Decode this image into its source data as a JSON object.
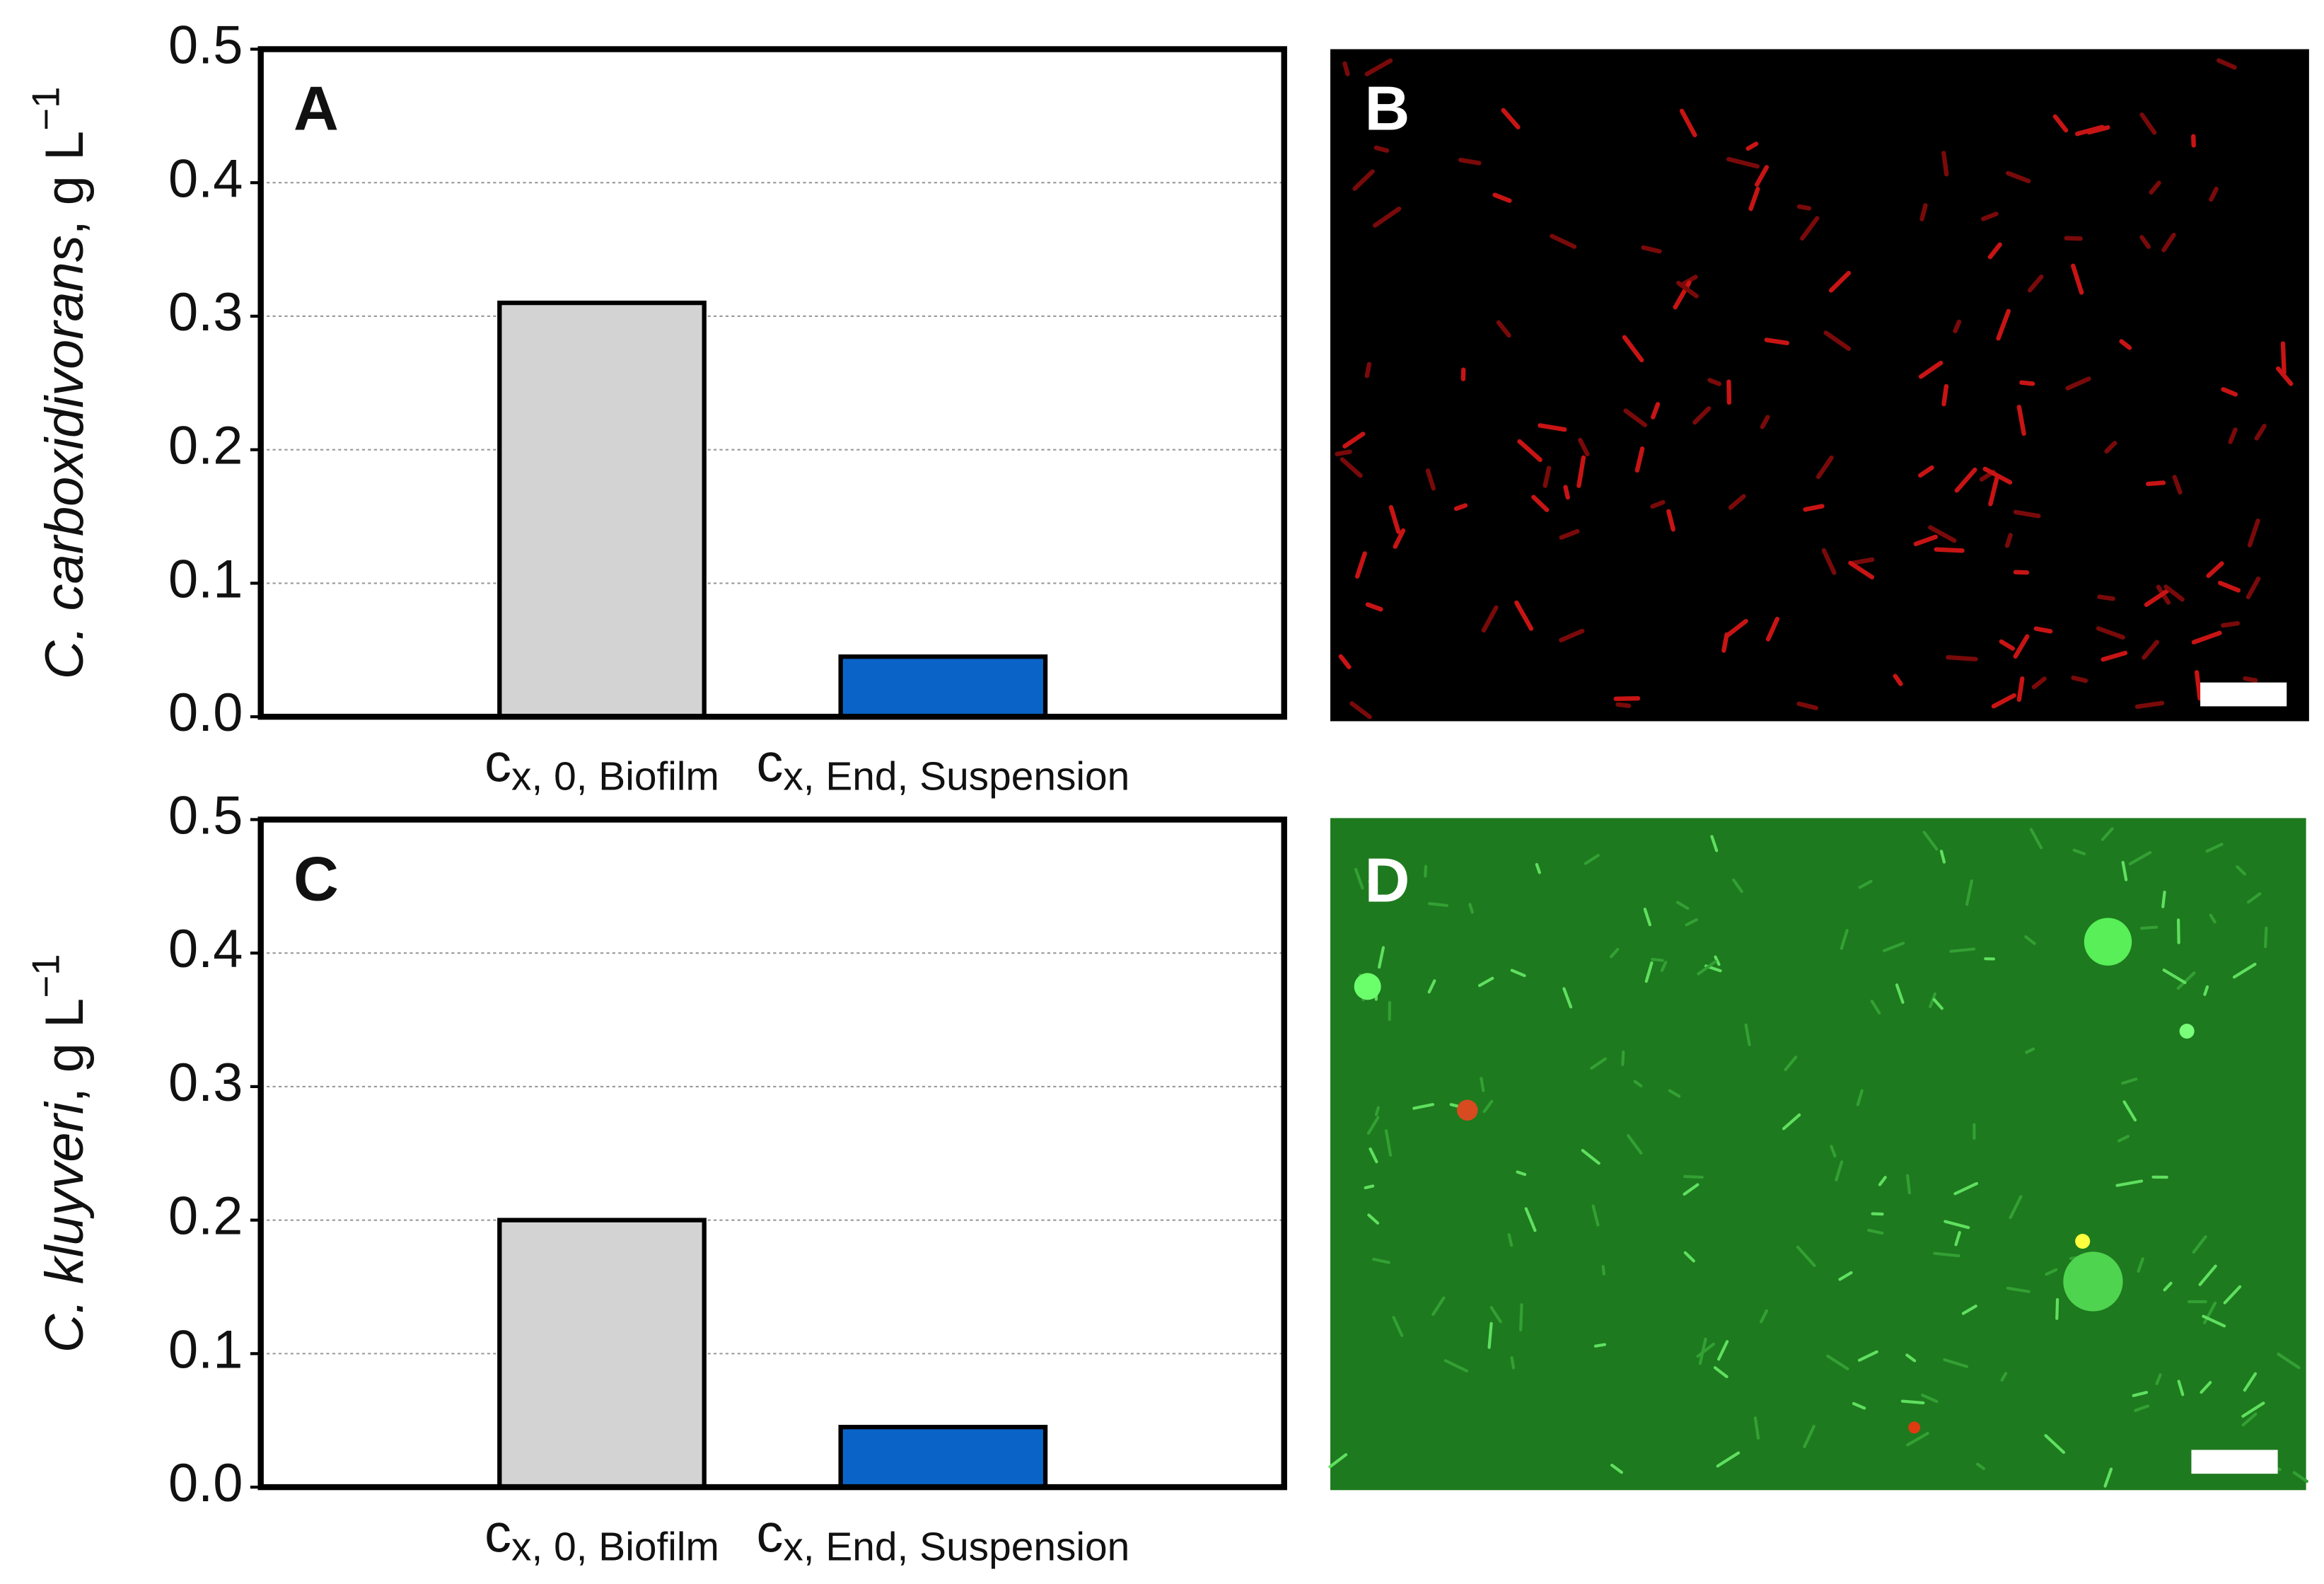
{
  "chart_data": [
    {
      "type": "bar",
      "panel_label": "A",
      "y_label": "C. carboxidivorans, g L−1",
      "categories": [
        "cx, 0, Biofilm",
        "cx, End, Suspension"
      ],
      "values": [
        0.31,
        0.045
      ],
      "colors": [
        "#d3d3d3",
        "#0a64c8"
      ],
      "ylim": [
        0,
        0.5
      ],
      "yticks": [
        {
          "value": 0,
          "label": "0.0"
        },
        0.1,
        0.2,
        0.3,
        0.4,
        0.5
      ],
      "grid": true
    },
    {
      "type": "bar",
      "panel_label": "C",
      "y_label": "C. kluyveri, g L−1",
      "categories": [
        "cx, 0, Biofilm",
        "cx, End, Suspension"
      ],
      "values": [
        0.2,
        0.045
      ],
      "colors": [
        "#d3d3d3",
        "#0a64c8"
      ],
      "ylim": [
        0,
        0.5
      ],
      "yticks": [
        {
          "value": 0,
          "label": "0.0"
        },
        0.1,
        0.2,
        0.3,
        0.4,
        0.5
      ],
      "grid": true
    }
  ],
  "images": [
    {
      "panel_label": "B"
    },
    {
      "panel_label": "D"
    }
  ]
}
